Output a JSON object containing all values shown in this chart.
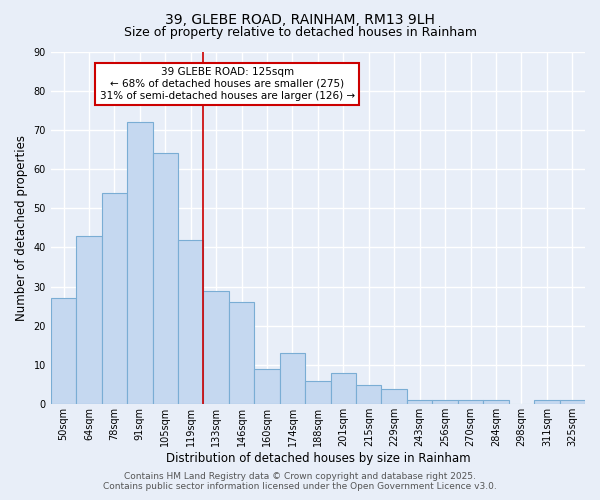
{
  "title": "39, GLEBE ROAD, RAINHAM, RM13 9LH",
  "subtitle": "Size of property relative to detached houses in Rainham",
  "xlabel": "Distribution of detached houses by size in Rainham",
  "ylabel": "Number of detached properties",
  "categories": [
    "50sqm",
    "64sqm",
    "78sqm",
    "91sqm",
    "105sqm",
    "119sqm",
    "133sqm",
    "146sqm",
    "160sqm",
    "174sqm",
    "188sqm",
    "201sqm",
    "215sqm",
    "229sqm",
    "243sqm",
    "256sqm",
    "270sqm",
    "284sqm",
    "298sqm",
    "311sqm",
    "325sqm"
  ],
  "values": [
    27,
    43,
    54,
    72,
    64,
    42,
    29,
    26,
    9,
    13,
    6,
    8,
    5,
    4,
    1,
    1,
    1,
    1,
    0,
    1,
    1
  ],
  "bar_color": "#c5d8f0",
  "bar_edge_color": "#7aadd4",
  "red_line_index": 5,
  "annotation_line1": "39 GLEBE ROAD: 125sqm",
  "annotation_line2": "← 68% of detached houses are smaller (275)",
  "annotation_line3": "31% of semi-detached houses are larger (126) →",
  "annotation_box_facecolor": "#ffffff",
  "annotation_box_edgecolor": "#cc0000",
  "red_line_color": "#cc0000",
  "footer_line1": "Contains HM Land Registry data © Crown copyright and database right 2025.",
  "footer_line2": "Contains public sector information licensed under the Open Government Licence v3.0.",
  "ylim": [
    0,
    90
  ],
  "yticks": [
    0,
    10,
    20,
    30,
    40,
    50,
    60,
    70,
    80,
    90
  ],
  "background_color": "#e8eef8",
  "grid_color": "#ffffff",
  "title_fontsize": 10,
  "subtitle_fontsize": 9,
  "axis_label_fontsize": 8.5,
  "tick_fontsize": 7,
  "annotation_fontsize": 7.5,
  "footer_fontsize": 6.5
}
